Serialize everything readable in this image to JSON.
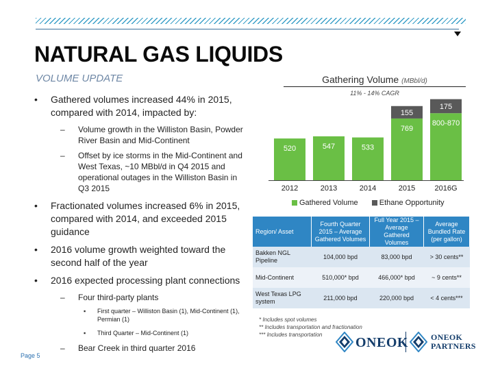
{
  "header": {
    "title": "NATURAL GAS LIQUIDS",
    "subtitle": "VOLUME UPDATE"
  },
  "bullets": {
    "b1": "Gathered volumes increased 44% in 2015, compared with 2014, impacted by:",
    "b1_1": "Volume growth in the Williston Basin, Powder River Basin and Mid-Continent",
    "b1_2": "Offset by ice storms in the Mid-Continent and West Texas, ~10 MBbl/d in Q4 2015 and operational outages in the Williston Basin in Q3 2015",
    "b2": "Fractionated volumes increased 6% in 2015, compared with 2014, and exceeded 2015 guidance",
    "b3": "2016 volume growth weighted toward the second half of the year",
    "b4": "2016 expected processing plant connections",
    "b4_1": "Four third-party plants",
    "b4_1_1": "First quarter – Williston Basin (1), Mid-Continent (1), Permian (1)",
    "b4_1_2": "Third Quarter – Mid-Continent (1)",
    "b4_2": "Bear Creek in third quarter 2016",
    "bullet_char": "•",
    "dash_char": "–",
    "sub_char": "▪"
  },
  "chart_data": {
    "type": "bar",
    "title": "Gathering Volume",
    "units": "(MBbl/d)",
    "annotation": "11% - 14% CAGR",
    "categories": [
      "2012",
      "2013",
      "2014",
      "2015",
      "2016G"
    ],
    "series": [
      {
        "name": "Gathered Volume",
        "color": "#6abf45",
        "values": [
          520,
          547,
          533,
          769,
          835
        ],
        "labels": [
          "520",
          "547",
          "533",
          "769",
          "800-870"
        ]
      },
      {
        "name": "Ethane Opportunity",
        "color": "#595959",
        "values": [
          0,
          0,
          0,
          155,
          175
        ],
        "labels": [
          "",
          "",
          "",
          "155",
          "175"
        ]
      }
    ],
    "ylim": [
      0,
      1050
    ],
    "stacked": true,
    "grid": false
  },
  "legend": {
    "gathered": "Gathered Volume",
    "ethane": "Ethane Opportunity"
  },
  "table": {
    "headers": [
      "Region/ Asset",
      "Fourth Quarter 2015 – Average Gathered Volumes",
      "Full Year 2015 – Average Gathered Volumes",
      "Average Bundled Rate (per gallon)"
    ],
    "rows": [
      [
        "Bakken NGL Pipeline",
        "104,000 bpd",
        "83,000 bpd",
        "> 30 cents**"
      ],
      [
        "Mid-Continent",
        "510,000* bpd",
        "466,000* bpd",
        "~ 9 cents**"
      ],
      [
        "West Texas LPG system",
        "211,000 bpd",
        "220,000 bpd",
        "< 4 cents***"
      ]
    ]
  },
  "notes": [
    "* Includes spot volumes",
    "** Includes transportation and fractionation",
    "*** Includes transportation"
  ],
  "footer": {
    "page": "Page 5",
    "logo1": "ONEOK",
    "logo2_line1": "ONEOK",
    "logo2_line2": "PARTNERS"
  },
  "colors": {
    "accent": "#2f86c4",
    "bar_green": "#6abf45",
    "bar_gray": "#595959",
    "logo_navy": "#143d6b"
  }
}
